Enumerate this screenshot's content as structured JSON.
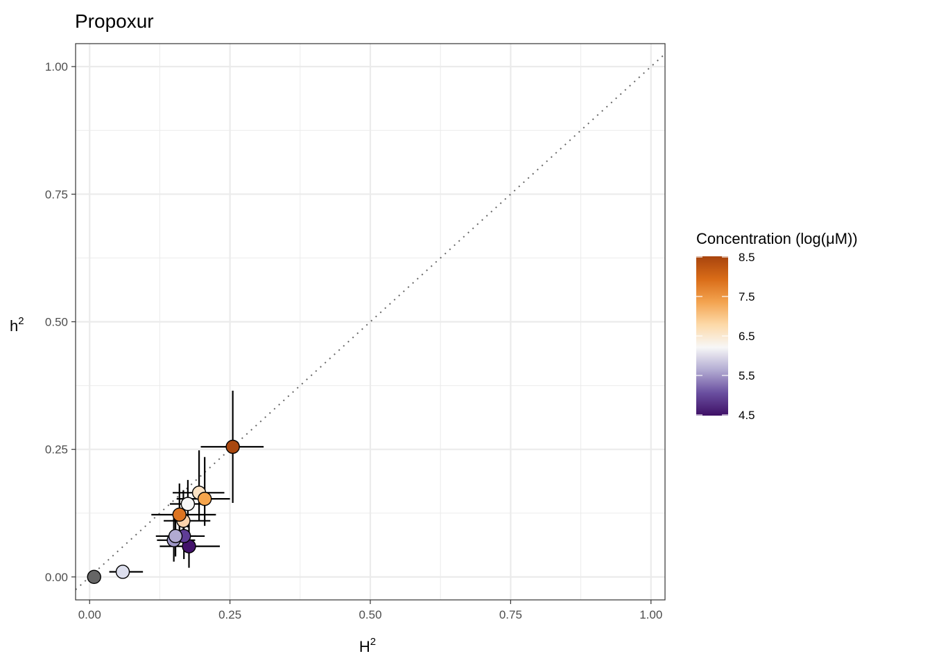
{
  "chart_data": {
    "type": "scatter",
    "title": "Propoxur",
    "xlabel": "H",
    "xlabel_sup": "2",
    "ylabel": "h",
    "ylabel_sup": "2",
    "xlim": [
      -0.025,
      1.025
    ],
    "ylim": [
      -0.045,
      1.045
    ],
    "xticks": [
      "0.00",
      "0.25",
      "0.50",
      "0.75",
      "1.00"
    ],
    "yticks": [
      "0.00",
      "0.25",
      "0.50",
      "0.75",
      "1.00"
    ],
    "grid": true,
    "identity_line": true,
    "legend": {
      "title": "Concentration (log(μM))",
      "position": "right",
      "range": [
        4.5,
        8.5
      ],
      "ticks": [
        "4.5",
        "5.5",
        "6.5",
        "7.5",
        "8.5"
      ],
      "colors": [
        "#3f1066",
        "#6a4fa0",
        "#b2abd2",
        "#f7f7f7",
        "#fdd9a8",
        "#f3a34f",
        "#d96c18",
        "#a8440e"
      ]
    },
    "points": [
      {
        "x": 0.008,
        "y": 0.0,
        "xerr": [
          0.008,
          0.008
        ],
        "yerr": [
          0.0,
          0.0
        ],
        "conc": null,
        "color": "#666666"
      },
      {
        "x": 0.059,
        "y": 0.01,
        "xerr": [
          0.035,
          0.095
        ],
        "yerr": [
          0.01,
          0.01
        ],
        "conc": 6.0,
        "color": "#dddfee"
      },
      {
        "x": 0.177,
        "y": 0.06,
        "xerr": [
          0.125,
          0.232
        ],
        "yerr": [
          0.018,
          0.108
        ],
        "conc": 4.5,
        "color": "#43136b"
      },
      {
        "x": 0.168,
        "y": 0.08,
        "xerr": [
          0.135,
          0.205
        ],
        "yerr": [
          0.035,
          0.12
        ],
        "conc": 5.2,
        "color": "#5f3d96"
      },
      {
        "x": 0.15,
        "y": 0.072,
        "xerr": [
          0.12,
          0.188
        ],
        "yerr": [
          0.03,
          0.115
        ],
        "conc": 5.6,
        "color": "#9e97c7"
      },
      {
        "x": 0.153,
        "y": 0.08,
        "xerr": [
          0.118,
          0.19
        ],
        "yerr": [
          0.04,
          0.126
        ],
        "conc": 5.7,
        "color": "#b1aad2"
      },
      {
        "x": 0.175,
        "y": 0.143,
        "xerr": [
          0.143,
          0.212
        ],
        "yerr": [
          0.097,
          0.19
        ],
        "conc": 6.5,
        "color": "#f7f7f7"
      },
      {
        "x": 0.167,
        "y": 0.11,
        "xerr": [
          0.132,
          0.215
        ],
        "yerr": [
          0.057,
          0.17
        ],
        "conc": 7.0,
        "color": "#fbd4ad"
      },
      {
        "x": 0.195,
        "y": 0.165,
        "xerr": [
          0.148,
          0.24
        ],
        "yerr": [
          0.11,
          0.248
        ],
        "conc": 6.9,
        "color": "#fde3c4"
      },
      {
        "x": 0.205,
        "y": 0.153,
        "xerr": [
          0.155,
          0.25
        ],
        "yerr": [
          0.1,
          0.235
        ],
        "conc": 7.6,
        "color": "#f6a54c"
      },
      {
        "x": 0.16,
        "y": 0.122,
        "xerr": [
          0.11,
          0.225
        ],
        "yerr": [
          0.07,
          0.183
        ],
        "conc": 8.0,
        "color": "#dd7421"
      },
      {
        "x": 0.255,
        "y": 0.255,
        "xerr": [
          0.198,
          0.31
        ],
        "yerr": [
          0.145,
          0.365
        ],
        "conc": 8.5,
        "color": "#a8470f"
      }
    ]
  }
}
